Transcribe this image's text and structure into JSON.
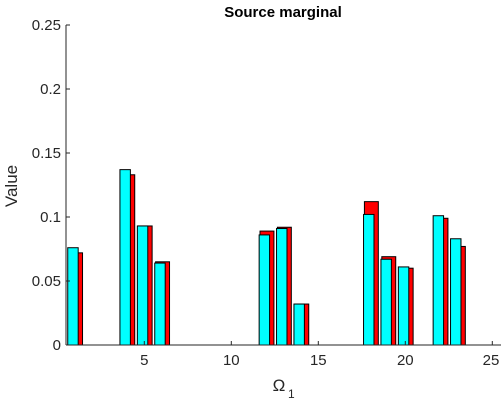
{
  "chart_data": {
    "type": "bar",
    "title": "Source marginal",
    "xlabel": "Ω",
    "xlabel_subscript": "1",
    "ylabel": "Value",
    "xlim": [
      0.5,
      25.5
    ],
    "ylim": [
      0,
      0.25
    ],
    "xticks": [
      5,
      10,
      15,
      20,
      25
    ],
    "yticks": [
      0,
      0.05,
      0.1,
      0.15,
      0.2,
      0.25
    ],
    "ytick_labels": [
      "0",
      "0.05",
      "0.1",
      "0.15",
      "0.2",
      "0.25"
    ],
    "grid": false,
    "series": [
      {
        "color": "#ff0000",
        "x": [
          1,
          4,
          5,
          6,
          12,
          13,
          14,
          18,
          19,
          20,
          22,
          23
        ],
        "values": [
          0.072,
          0.133,
          0.093,
          0.065,
          0.089,
          0.092,
          0.032,
          0.112,
          0.069,
          0.06,
          0.099,
          0.077
        ]
      },
      {
        "color": "#00ffff",
        "x": [
          1,
          4,
          5,
          6,
          12,
          13,
          14,
          18,
          19,
          20,
          22,
          23
        ],
        "values": [
          0.076,
          0.137,
          0.093,
          0.064,
          0.086,
          0.091,
          0.032,
          0.102,
          0.067,
          0.061,
          0.101,
          0.083
        ]
      }
    ]
  }
}
